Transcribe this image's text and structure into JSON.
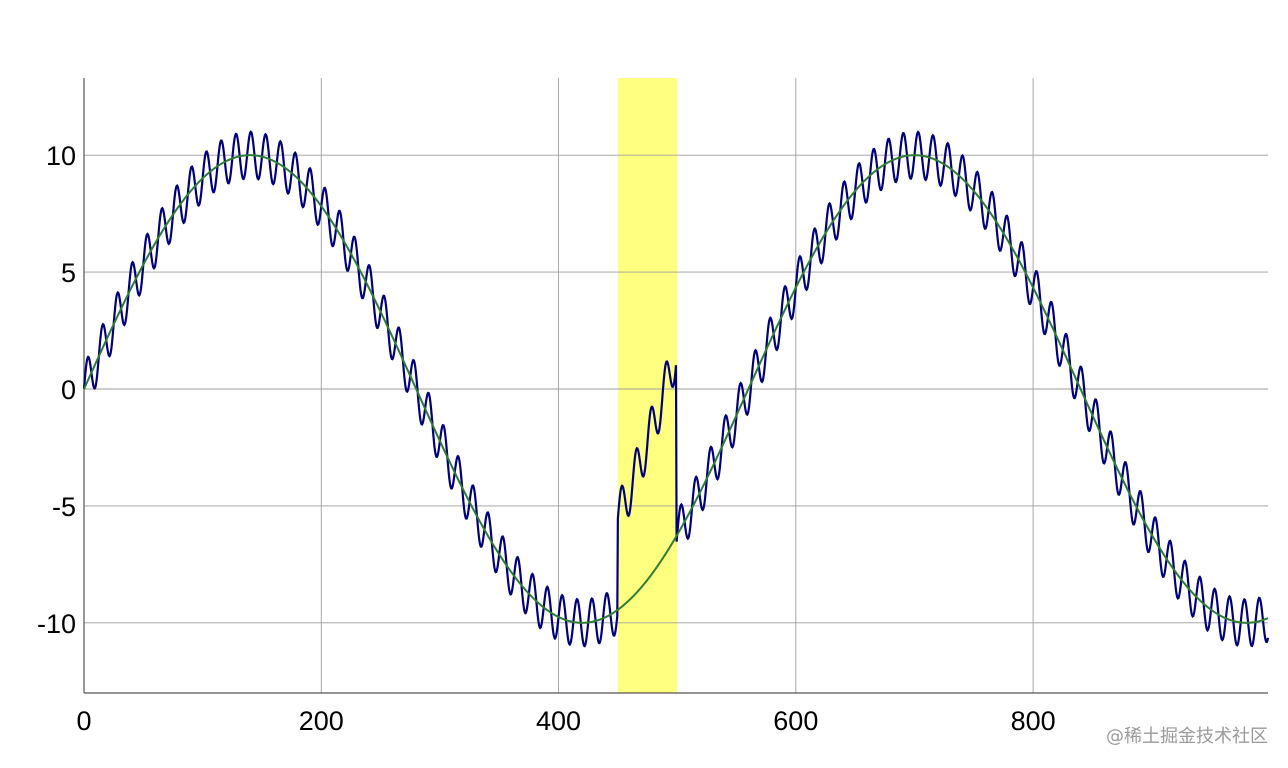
{
  "chart_data": {
    "type": "line",
    "title": "",
    "xlabel": "",
    "ylabel": "",
    "xlim": [
      0,
      998
    ],
    "ylim": [
      -13,
      13.3
    ],
    "x_ticks": [
      0,
      200,
      400,
      600,
      800
    ],
    "y_ticks": [
      10,
      5,
      0,
      -5,
      -10
    ],
    "x_tick_labels": [
      "0",
      "200",
      "400",
      "600",
      "800"
    ],
    "y_tick_labels": [
      "10",
      "5",
      "0",
      "-5",
      "-10"
    ],
    "grid": true,
    "legend": "none",
    "highlight_region": {
      "x_start": 450,
      "x_end": 500,
      "color": "#ffff80"
    },
    "series": [
      {
        "color": "#00007a",
        "formula": "10*sin(2*pi*x/560) + 1*sin(2*pi*x/12.5) inside highlight: + offset ~4",
        "sample_points": [
          {
            "x": 0,
            "y": 0.5
          },
          {
            "x": 140,
            "y": 10
          },
          {
            "x": 280,
            "y": 0
          },
          {
            "x": 420,
            "y": -10
          },
          {
            "x": 450,
            "y": -5.5
          },
          {
            "x": 475,
            "y": -3
          },
          {
            "x": 498,
            "y": -2.5
          },
          {
            "x": 500,
            "y": -7
          },
          {
            "x": 560,
            "y": 0
          },
          {
            "x": 700,
            "y": 10
          },
          {
            "x": 840,
            "y": 0
          },
          {
            "x": 980,
            "y": -10
          }
        ]
      },
      {
        "color": "#2e7d32",
        "formula": "10*sin(2*pi*x/560)",
        "sample_points": [
          {
            "x": 0,
            "y": 0
          },
          {
            "x": 140,
            "y": 10
          },
          {
            "x": 280,
            "y": 0
          },
          {
            "x": 420,
            "y": -10
          },
          {
            "x": 560,
            "y": 0
          },
          {
            "x": 700,
            "y": 10
          },
          {
            "x": 840,
            "y": 0
          },
          {
            "x": 980,
            "y": -10
          }
        ]
      }
    ]
  },
  "watermark": "@稀土掘金技术社区"
}
